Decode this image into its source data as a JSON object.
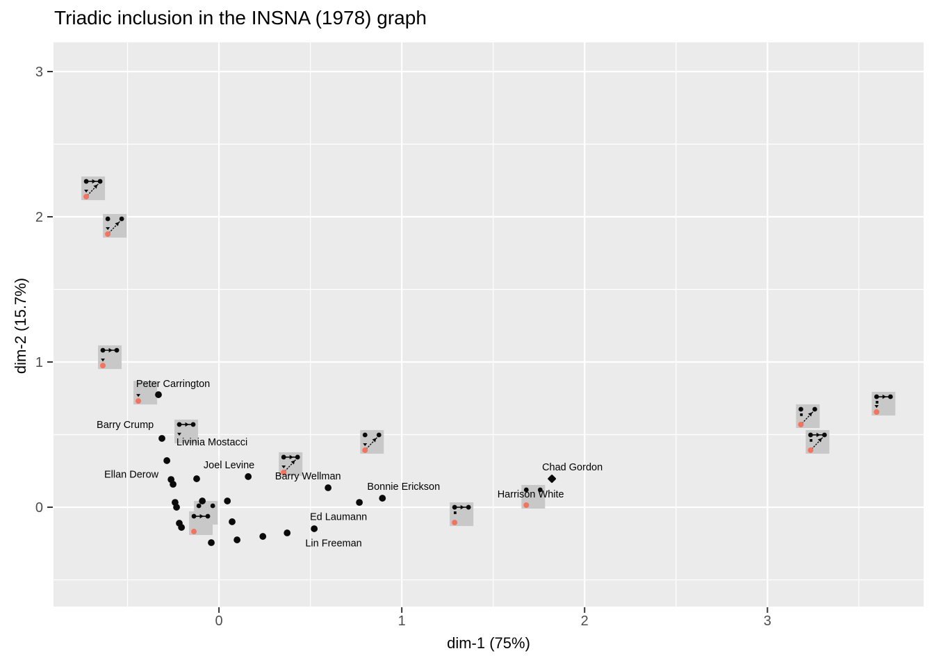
{
  "title": "Triadic inclusion in the INSNA (1978) graph",
  "chart_data": {
    "type": "scatter",
    "title": "Triadic inclusion in the INSNA (1978) graph",
    "xlabel": "dim-1 (75%)",
    "ylabel": "dim-2 (15.7%)",
    "xlim": [
      -0.905,
      3.854
    ],
    "ylim": [
      -0.684,
      3.201
    ],
    "x_ticks": [
      0,
      1,
      2,
      3
    ],
    "y_ticks": [
      0,
      1,
      2,
      3
    ],
    "x_tick_labels": [
      "0",
      "1",
      "2",
      "3"
    ],
    "y_tick_labels": [
      "0",
      "1",
      "2",
      "3"
    ],
    "x_minor_ticks": [
      -0.5,
      0.5,
      1.5,
      2.5,
      3.5
    ],
    "y_minor_ticks": [
      -0.5,
      0.5,
      1.5,
      2.5
    ],
    "grid": "white major and minor gridlines on grey panel",
    "legend": "none",
    "colors": {
      "panel_bg": "#ebebeb",
      "grid": "#ffffff",
      "point": "#0a0a0a",
      "glyph_bg": "#c8c8c8",
      "glyph_node": "#0a0a0a",
      "ego_dot": "#f4735e",
      "tick_text": "#4d4d4d",
      "tick_mark": "#333333",
      "label_text": "#000000"
    },
    "points": [
      {
        "x": -0.312,
        "y": 0.474
      },
      {
        "x": -0.285,
        "y": 0.321
      },
      {
        "x": -0.262,
        "y": 0.191
      },
      {
        "x": -0.251,
        "y": 0.158
      },
      {
        "x": -0.122,
        "y": 0.196
      },
      {
        "x": -0.24,
        "y": 0.033
      },
      {
        "x": -0.232,
        "y": 0.0
      },
      {
        "x": -0.091,
        "y": 0.043
      },
      {
        "x": 0.046,
        "y": 0.043
      },
      {
        "x": -0.217,
        "y": -0.11
      },
      {
        "x": -0.205,
        "y": -0.139
      },
      {
        "x": 0.072,
        "y": -0.1
      },
      {
        "x": -0.042,
        "y": -0.244
      },
      {
        "x": 0.099,
        "y": -0.225
      },
      {
        "x": 0.24,
        "y": -0.201
      },
      {
        "x": 0.373,
        "y": -0.177
      },
      {
        "x": 0.521,
        "y": -0.148
      },
      {
        "x": 0.16,
        "y": 0.211
      },
      {
        "x": 0.597,
        "y": 0.134
      },
      {
        "x": 0.768,
        "y": 0.033
      },
      {
        "x": 0.894,
        "y": 0.062
      },
      {
        "x": 1.821,
        "y": 0.196,
        "shape": "diamond"
      },
      {
        "x": -0.331,
        "y": 0.775
      }
    ],
    "labeled_points": [
      {
        "name": "Peter Carrington",
        "lx": -0.251,
        "ly": 0.852
      },
      {
        "name": "Barry Crump",
        "lx": -0.513,
        "ly": 0.569
      },
      {
        "name": "Livinia Mostacci",
        "lx": -0.038,
        "ly": 0.45
      },
      {
        "name": "Joel Levine",
        "lx": 0.055,
        "ly": 0.292
      },
      {
        "name": "Ellan Derow",
        "lx": -0.479,
        "ly": 0.227
      },
      {
        "name": "Barry Wellman",
        "lx": 0.487,
        "ly": 0.215
      },
      {
        "name": "Bonnie Erickson",
        "lx": 1.01,
        "ly": 0.144
      },
      {
        "name": "Ed Laumann",
        "lx": 0.654,
        "ly": -0.065
      },
      {
        "name": "Lin Freeman",
        "lx": 0.627,
        "ly": -0.246
      },
      {
        "name": "Chad Gordon",
        "lx": 1.933,
        "ly": 0.278
      },
      {
        "name": "Harrison White",
        "lx": 1.705,
        "ly": 0.091
      }
    ],
    "triad_glyphs": [
      {
        "x": -0.688,
        "y": 2.196,
        "top_edge": true,
        "diagonal": true,
        "triangle": true,
        "red_dot": true,
        "tiny_square": false
      },
      {
        "x": -0.57,
        "y": 1.938,
        "top_edge": false,
        "diagonal": true,
        "triangle": true,
        "red_dot": true,
        "tiny_square": false
      },
      {
        "x": -0.597,
        "y": 1.033,
        "top_edge": true,
        "diagonal": false,
        "triangle": true,
        "red_dot": true,
        "tiny_square": false
      },
      {
        "x": -0.403,
        "y": 0.789,
        "top_edge": false,
        "diagonal": false,
        "triangle": true,
        "red_dot": true,
        "tiny_square": false,
        "top_dots": false
      },
      {
        "x": -0.179,
        "y": 0.522,
        "top_edge": true,
        "diagonal": false,
        "triangle": true,
        "red_dot": false,
        "tiny_square": false
      },
      {
        "x": -0.072,
        "y": -0.038,
        "top_edge": false,
        "diagonal": false,
        "triangle": false,
        "red_dot": false,
        "tiny_square": false
      },
      {
        "x": -0.099,
        "y": -0.11,
        "top_edge": true,
        "diagonal": false,
        "triangle": false,
        "red_dot": true,
        "tiny_square": false
      },
      {
        "x": 0.392,
        "y": 0.297,
        "top_edge": true,
        "diagonal": true,
        "triangle": true,
        "red_dot": true,
        "tiny_square": false
      },
      {
        "x": 0.837,
        "y": 0.45,
        "top_edge": false,
        "diagonal": true,
        "triangle": true,
        "red_dot": true,
        "tiny_square": false
      },
      {
        "x": 1.327,
        "y": -0.048,
        "top_edge": true,
        "diagonal": false,
        "triangle": false,
        "red_dot": true,
        "tiny_square": true
      },
      {
        "x": 1.719,
        "y": 0.072,
        "top_edge": false,
        "diagonal": false,
        "triangle": false,
        "red_dot": true,
        "tiny_square": false
      },
      {
        "x": 3.221,
        "y": 0.627,
        "top_edge": false,
        "diagonal": true,
        "triangle": false,
        "red_dot": true,
        "tiny_square": true
      },
      {
        "x": 3.274,
        "y": 0.45,
        "top_edge": true,
        "diagonal": true,
        "triangle": false,
        "red_dot": true,
        "tiny_square": true
      },
      {
        "x": 3.635,
        "y": 0.713,
        "top_edge": true,
        "diagonal": false,
        "triangle": true,
        "red_dot": true,
        "tiny_square": true
      }
    ]
  }
}
